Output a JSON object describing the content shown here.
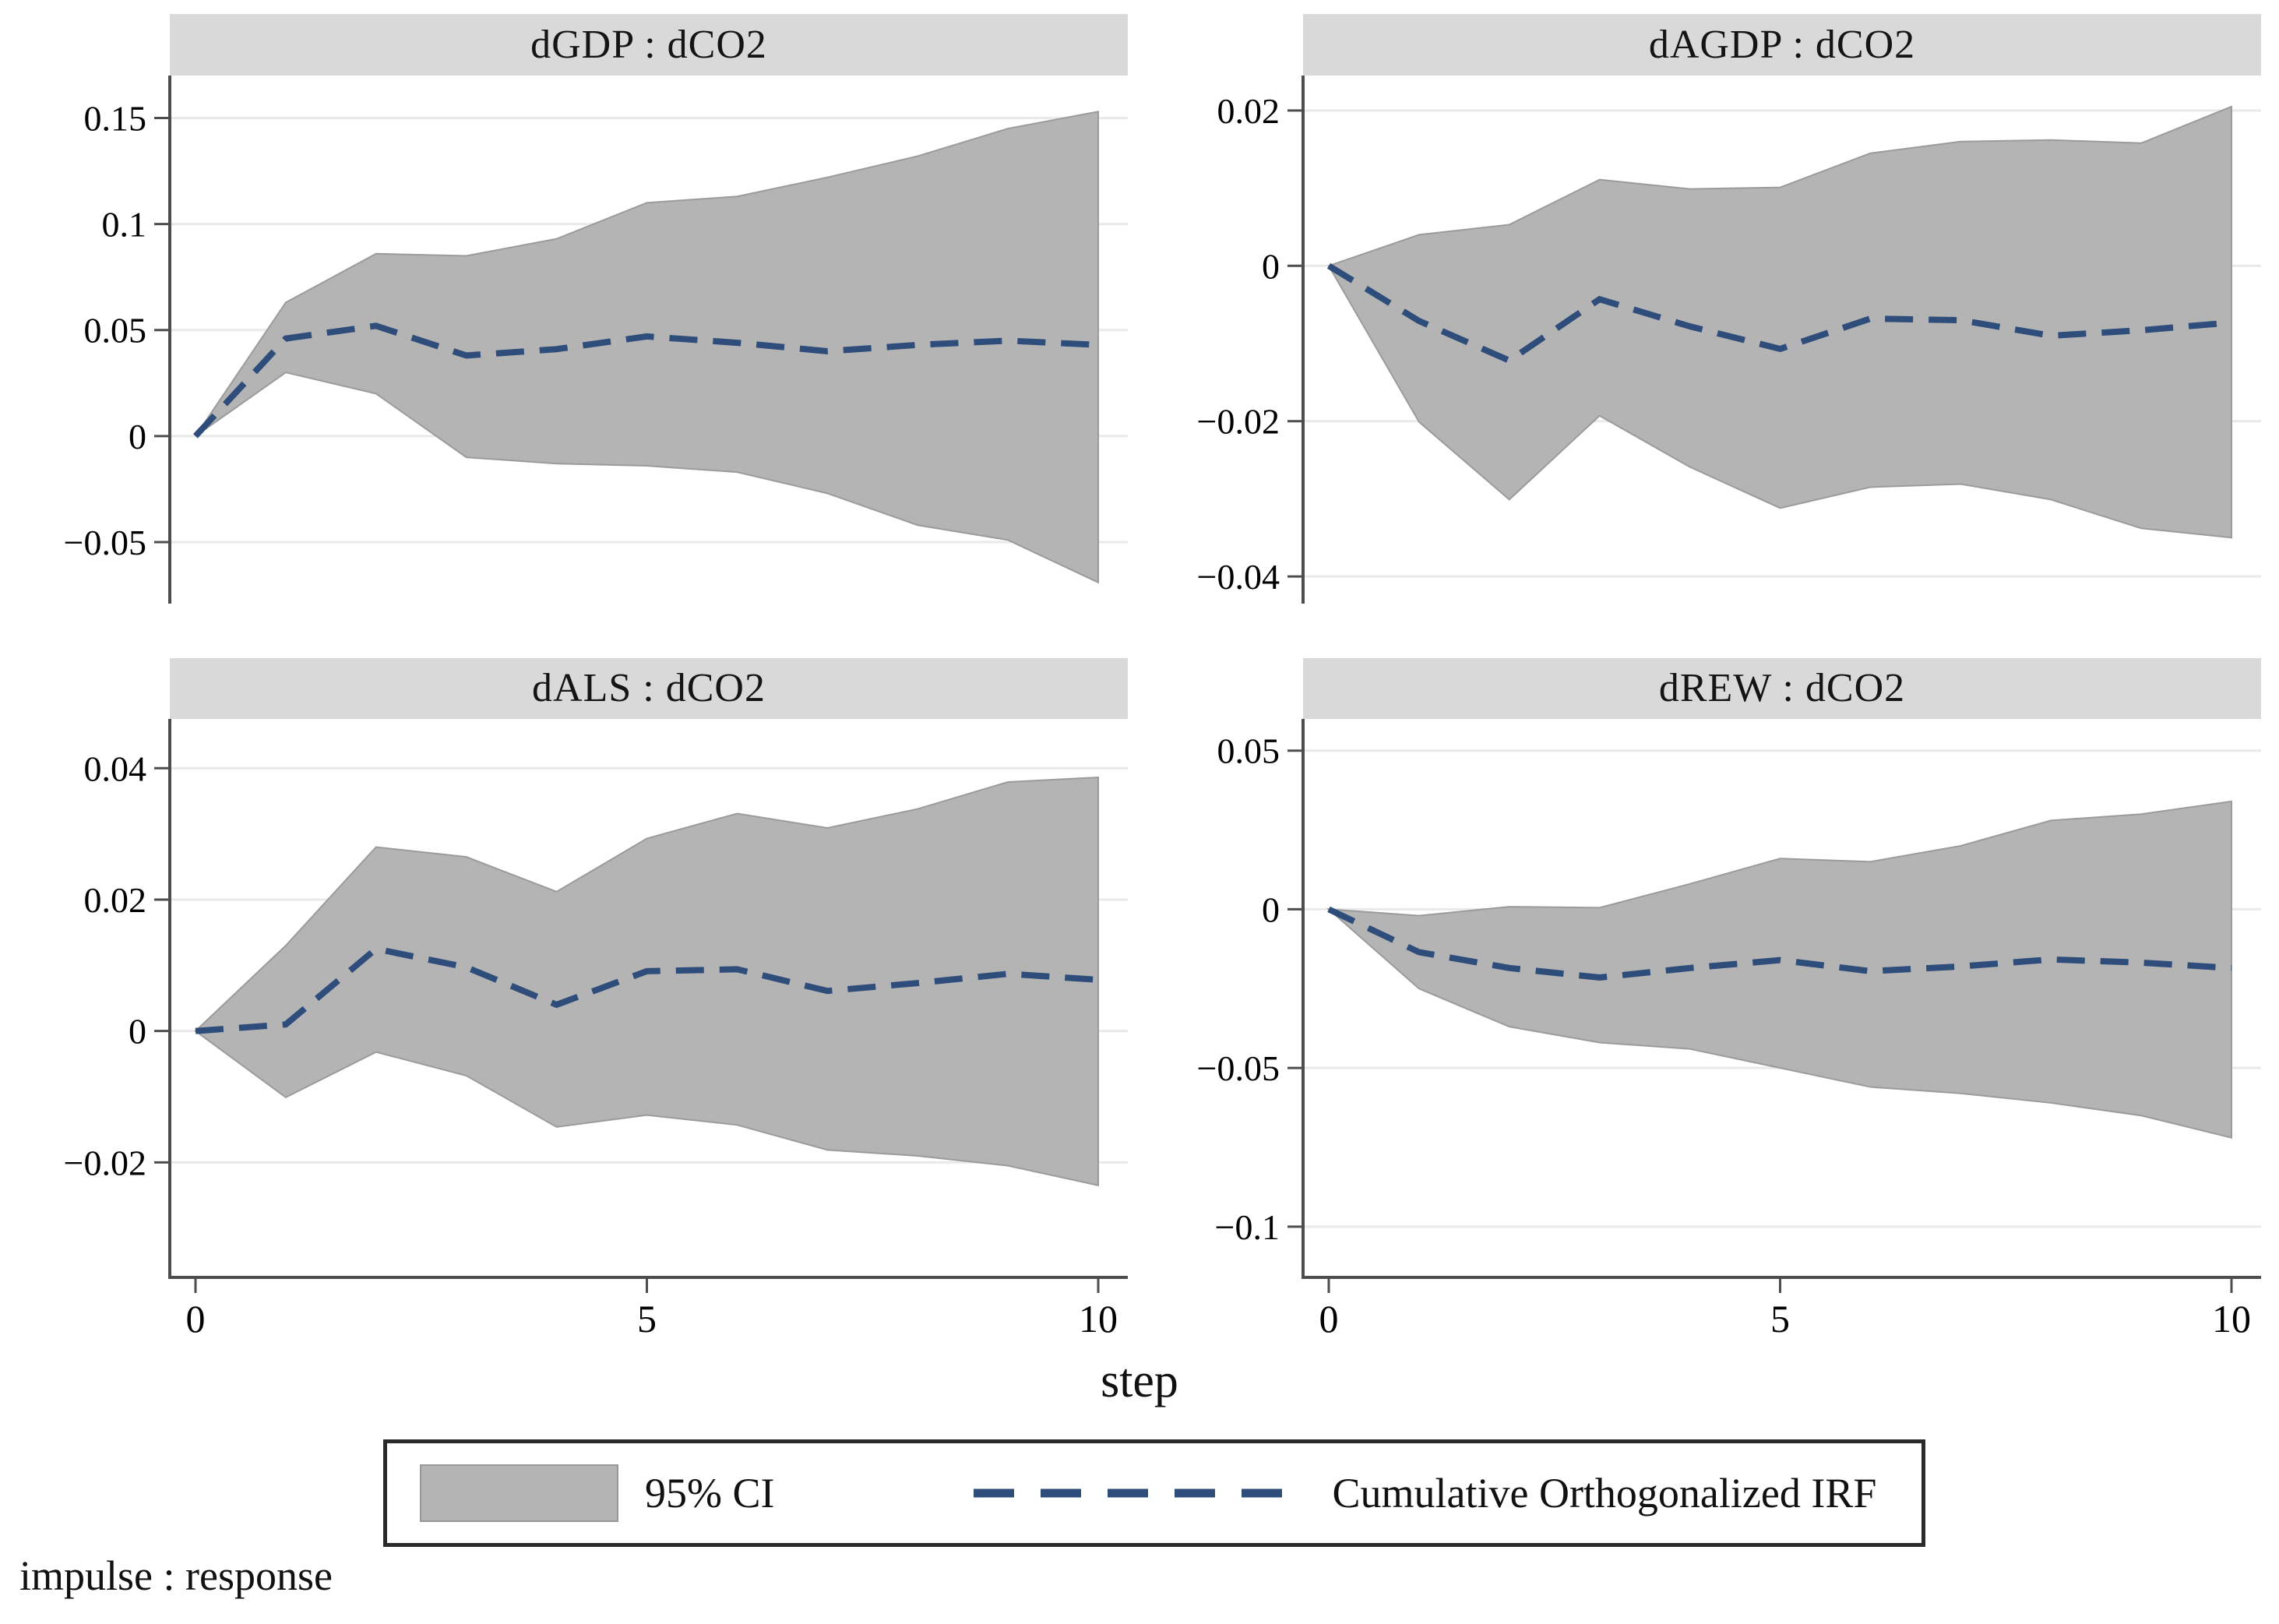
{
  "figure": {
    "xlabel": "step",
    "footer": "impulse : response",
    "legend": {
      "ci_label": "95% CI",
      "irf_label": "Cumulative Orthogonalized IRF"
    },
    "colors": {
      "band": "#b4b4b4",
      "band_edge": "#9b9b9b",
      "irf_line": "#2e4d7b",
      "header_bg": "#d9d9d9",
      "gridline": "#e9e9e9",
      "axis": "#4d4d4d",
      "text": "#000000"
    }
  },
  "chart_data": [
    {
      "type": "area",
      "title": "dGDP : dCO2",
      "x": [
        0,
        1,
        2,
        3,
        4,
        5,
        6,
        7,
        8,
        9,
        10
      ],
      "xticks": [
        0,
        5,
        10
      ],
      "yticks": [
        0.15,
        0.1,
        0.05,
        0,
        -0.05
      ],
      "ylim": [
        -0.079,
        0.17
      ],
      "grid": true,
      "legend_position": "bottom-shared",
      "series": [
        {
          "name": "Cumulative Orthogonalized IRF",
          "role": "irf",
          "values": [
            0,
            0.046,
            0.052,
            0.038,
            0.041,
            0.047,
            0.044,
            0.04,
            0.043,
            0.045,
            0.043
          ]
        },
        {
          "name": "95% CI upper",
          "role": "upper",
          "values": [
            0,
            0.063,
            0.086,
            0.085,
            0.093,
            0.11,
            0.113,
            0.122,
            0.132,
            0.145,
            0.153
          ]
        },
        {
          "name": "95% CI lower",
          "role": "lower",
          "values": [
            0,
            0.03,
            0.02,
            -0.01,
            -0.013,
            -0.014,
            -0.017,
            -0.027,
            -0.042,
            -0.049,
            -0.069
          ]
        }
      ]
    },
    {
      "type": "area",
      "title": "dAGDP : dCO2",
      "x": [
        0,
        1,
        2,
        3,
        4,
        5,
        6,
        7,
        8,
        9,
        10
      ],
      "xticks": [
        0,
        5,
        10
      ],
      "yticks": [
        0.02,
        0,
        -0.02,
        -0.04
      ],
      "ylim": [
        -0.0435,
        0.0245
      ],
      "grid": true,
      "legend_position": "bottom-shared",
      "series": [
        {
          "name": "Cumulative Orthogonalized IRF",
          "role": "irf",
          "values": [
            0,
            -0.0071,
            -0.0122,
            -0.0043,
            -0.0078,
            -0.0107,
            -0.0068,
            -0.007,
            -0.009,
            -0.0083,
            -0.0073
          ]
        },
        {
          "name": "95% CI upper",
          "role": "upper",
          "values": [
            0,
            0.004,
            0.0053,
            0.0111,
            0.0099,
            0.0101,
            0.0145,
            0.016,
            0.0162,
            0.0158,
            0.0205
          ]
        },
        {
          "name": "95% CI lower",
          "role": "lower",
          "values": [
            0,
            -0.0201,
            -0.0301,
            -0.0193,
            -0.0259,
            -0.0312,
            -0.0285,
            -0.0281,
            -0.0301,
            -0.0338,
            -0.035
          ]
        }
      ]
    },
    {
      "type": "area",
      "title": "dALS : dCO2",
      "x": [
        0,
        1,
        2,
        3,
        4,
        5,
        6,
        7,
        8,
        9,
        10
      ],
      "xticks": [
        0,
        5,
        10
      ],
      "yticks": [
        0.04,
        0.02,
        0,
        -0.02
      ],
      "ylim": [
        -0.0375,
        0.0475
      ],
      "grid": true,
      "legend_position": "bottom-shared",
      "series": [
        {
          "name": "Cumulative Orthogonalized IRF",
          "role": "irf",
          "values": [
            0,
            0.001,
            0.0125,
            0.0097,
            0.004,
            0.0091,
            0.0094,
            0.0061,
            0.0073,
            0.0087,
            0.0078
          ]
        },
        {
          "name": "95% CI upper",
          "role": "upper",
          "values": [
            0,
            0.013,
            0.028,
            0.0265,
            0.0212,
            0.0293,
            0.0331,
            0.0309,
            0.0338,
            0.0379,
            0.0386
          ]
        },
        {
          "name": "95% CI lower",
          "role": "lower",
          "values": [
            0,
            -0.0101,
            -0.0032,
            -0.0068,
            -0.0146,
            -0.0128,
            -0.0143,
            -0.0181,
            -0.019,
            -0.0205,
            -0.0235
          ]
        }
      ]
    },
    {
      "type": "area",
      "title": "dREW : dCO2",
      "x": [
        0,
        1,
        2,
        3,
        4,
        5,
        6,
        7,
        8,
        9,
        10
      ],
      "xticks": [
        0,
        5,
        10
      ],
      "yticks": [
        0.05,
        0,
        -0.05,
        -0.1
      ],
      "ylim": [
        -0.116,
        0.06
      ],
      "grid": true,
      "legend_position": "bottom-shared",
      "series": [
        {
          "name": "Cumulative Orthogonalized IRF",
          "role": "irf",
          "values": [
            0,
            -0.0135,
            -0.0185,
            -0.0215,
            -0.0185,
            -0.016,
            -0.0195,
            -0.018,
            -0.0158,
            -0.0168,
            -0.0185
          ]
        },
        {
          "name": "95% CI upper",
          "role": "upper",
          "values": [
            0,
            -0.002,
            0.0008,
            0.0005,
            0.008,
            0.016,
            0.015,
            0.02,
            0.028,
            0.03,
            0.034
          ]
        },
        {
          "name": "95% CI lower",
          "role": "lower",
          "values": [
            0,
            -0.025,
            -0.037,
            -0.042,
            -0.044,
            -0.05,
            -0.056,
            -0.058,
            -0.061,
            -0.065,
            -0.072
          ]
        }
      ]
    }
  ]
}
